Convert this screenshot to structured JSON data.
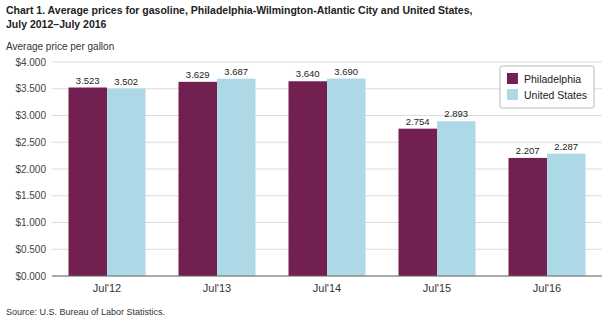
{
  "chart_data": {
    "type": "bar",
    "title": "Chart 1. Average prices for gasoline, Philadelphia-Wilmington-Atlantic City and United States,",
    "subtitle": "July 2012–July 2016",
    "ylabel": "Average price per gallon",
    "source": "Source: U.S. Bureau of Labor Statistics.",
    "categories": [
      "Jul'12",
      "Jul'13",
      "Jul'14",
      "Jul'15",
      "Jul'16"
    ],
    "series": [
      {
        "name": "Philadelphia",
        "color": "#722050",
        "values": [
          3.523,
          3.629,
          3.64,
          2.754,
          2.207
        ],
        "value_labels": [
          "3.523",
          "3.629",
          "3.640",
          "2.754",
          "2.207"
        ]
      },
      {
        "name": "United States",
        "color": "#ADD8E6",
        "values": [
          3.502,
          3.687,
          3.69,
          2.893,
          2.287
        ],
        "value_labels": [
          "3.502",
          "3.687",
          "3.690",
          "2.893",
          "2.287"
        ]
      }
    ],
    "ylim": [
      0,
      4.0
    ],
    "yticks": [
      {
        "value": 0.0,
        "label": "$0.000"
      },
      {
        "value": 0.5,
        "label": "$0.500"
      },
      {
        "value": 1.0,
        "label": "$1.000"
      },
      {
        "value": 1.5,
        "label": "$1.500"
      },
      {
        "value": 2.0,
        "label": "$2.000"
      },
      {
        "value": 2.5,
        "label": "$2.500"
      },
      {
        "value": 3.0,
        "label": "$3.000"
      },
      {
        "value": 3.5,
        "label": "$3.500"
      },
      {
        "value": 4.0,
        "label": "$4.000"
      }
    ],
    "grid": true,
    "legend": "upper-right",
    "data_labels": true
  }
}
